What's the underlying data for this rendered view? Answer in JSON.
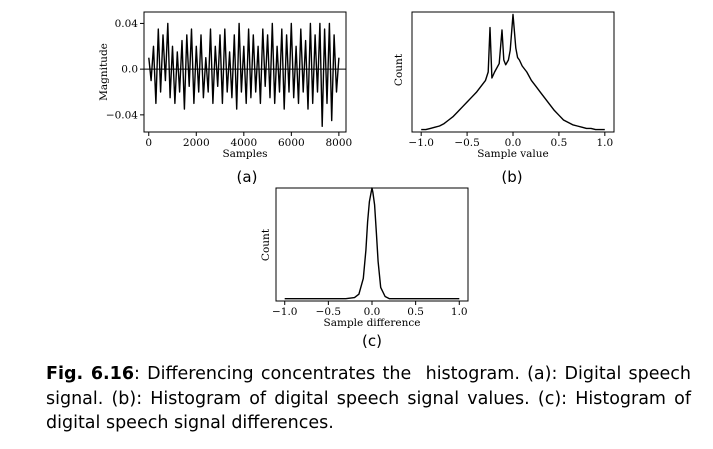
{
  "caption": {
    "label": "Fig. 6.16",
    "text": ": Differencing concentrates the  histogram. (a): Digital speech signal. (b): Histogram of digital speech signal values. (c): Histogram of digital speech signal differences."
  },
  "chart_data": [
    {
      "type": "line",
      "panel_label": "(a)",
      "title": "",
      "xlabel": "Samples",
      "ylabel": "Magnitude",
      "xlim": [
        -200,
        8300
      ],
      "ylim": [
        -0.055,
        0.05
      ],
      "xticks": [
        0,
        2000,
        4000,
        6000,
        8000
      ],
      "xtick_labels": [
        "0",
        "2000",
        "4000",
        "6000",
        "8000"
      ],
      "yticks": [
        -0.04,
        0.0,
        0.04
      ],
      "ytick_labels": [
        "−0.04",
        "0.0",
        "0.04"
      ],
      "zero_line": true,
      "grid": false,
      "series": [
        {
          "x": [
            0,
            100,
            200,
            300,
            400,
            500,
            600,
            700,
            800,
            900,
            1000,
            1100,
            1200,
            1300,
            1400,
            1500,
            1600,
            1700,
            1800,
            1900,
            2000,
            2100,
            2200,
            2300,
            2400,
            2500,
            2600,
            2700,
            2800,
            2900,
            3000,
            3100,
            3200,
            3300,
            3400,
            3500,
            3600,
            3700,
            3800,
            3900,
            4000,
            4100,
            4200,
            4300,
            4400,
            4500,
            4600,
            4700,
            4800,
            4900,
            5000,
            5100,
            5200,
            5300,
            5400,
            5500,
            5600,
            5700,
            5800,
            5900,
            6000,
            6100,
            6200,
            6300,
            6400,
            6500,
            6600,
            6700,
            6800,
            6900,
            7000,
            7100,
            7200,
            7300,
            7400,
            7500,
            7600,
            7700,
            7800,
            7900,
            8000
          ],
          "y": [
            0.01,
            -0.01,
            0.02,
            -0.03,
            0.035,
            -0.02,
            0.03,
            -0.01,
            0.04,
            -0.025,
            0.02,
            -0.03,
            0.015,
            -0.02,
            0.025,
            -0.035,
            0.03,
            -0.015,
            0.035,
            -0.03,
            0.02,
            -0.02,
            0.03,
            -0.025,
            0.01,
            -0.02,
            0.035,
            -0.03,
            0.02,
            -0.015,
            0.03,
            -0.03,
            0.035,
            -0.02,
            0.015,
            -0.025,
            0.03,
            -0.035,
            0.04,
            -0.02,
            0.02,
            -0.03,
            0.035,
            -0.025,
            0.03,
            -0.02,
            0.02,
            -0.03,
            0.035,
            -0.015,
            0.03,
            -0.025,
            0.04,
            -0.03,
            0.02,
            -0.02,
            0.035,
            -0.035,
            0.03,
            -0.02,
            0.04,
            -0.025,
            0.02,
            -0.03,
            0.035,
            -0.02,
            0.025,
            -0.035,
            0.04,
            -0.03,
            0.03,
            -0.02,
            0.04,
            -0.05,
            0.035,
            -0.03,
            0.04,
            -0.045,
            0.03,
            -0.02,
            0.01
          ]
        }
      ]
    },
    {
      "type": "line",
      "panel_label": "(b)",
      "title": "",
      "xlabel": "Sample value",
      "ylabel": "Count",
      "xlim": [
        -1.1,
        1.1
      ],
      "ylim": [
        0,
        1.0
      ],
      "xticks": [
        -1.0,
        -0.5,
        0.0,
        0.5,
        1.0
      ],
      "xtick_labels": [
        "−1.0",
        "−0.5",
        "0.0",
        "0.5",
        "1.0"
      ],
      "yticks": [],
      "grid": false,
      "series": [
        {
          "x": [
            -1.0,
            -0.95,
            -0.9,
            -0.85,
            -0.8,
            -0.75,
            -0.7,
            -0.65,
            -0.6,
            -0.55,
            -0.5,
            -0.45,
            -0.4,
            -0.35,
            -0.3,
            -0.27,
            -0.25,
            -0.23,
            -0.2,
            -0.15,
            -0.12,
            -0.1,
            -0.08,
            -0.05,
            -0.03,
            0.0,
            0.03,
            0.05,
            0.07,
            0.1,
            0.15,
            0.2,
            0.25,
            0.3,
            0.35,
            0.4,
            0.45,
            0.5,
            0.55,
            0.6,
            0.65,
            0.7,
            0.75,
            0.8,
            0.85,
            0.9,
            0.95,
            1.0
          ],
          "y": [
            0.02,
            0.02,
            0.03,
            0.04,
            0.05,
            0.07,
            0.1,
            0.13,
            0.17,
            0.21,
            0.25,
            0.29,
            0.33,
            0.38,
            0.43,
            0.5,
            0.87,
            0.45,
            0.5,
            0.57,
            0.85,
            0.6,
            0.56,
            0.6,
            0.68,
            0.98,
            0.7,
            0.62,
            0.6,
            0.55,
            0.5,
            0.43,
            0.38,
            0.33,
            0.28,
            0.23,
            0.18,
            0.14,
            0.1,
            0.08,
            0.06,
            0.05,
            0.04,
            0.03,
            0.03,
            0.02,
            0.02,
            0.02
          ]
        }
      ]
    },
    {
      "type": "line",
      "panel_label": "(c)",
      "title": "",
      "xlabel": "Sample difference",
      "ylabel": "Count",
      "xlim": [
        -1.1,
        1.1
      ],
      "ylim": [
        0,
        1.0
      ],
      "xticks": [
        -1.0,
        -0.5,
        0.0,
        0.5,
        1.0
      ],
      "xtick_labels": [
        "−1.0",
        "−0.5",
        "0.0",
        "0.5",
        "1.0"
      ],
      "yticks": [],
      "grid": false,
      "series": [
        {
          "x": [
            -1.0,
            -0.5,
            -0.3,
            -0.2,
            -0.15,
            -0.1,
            -0.07,
            -0.05,
            -0.03,
            -0.01,
            0.0,
            0.01,
            0.03,
            0.05,
            0.07,
            0.1,
            0.15,
            0.2,
            0.3,
            0.5,
            1.0
          ],
          "y": [
            0.02,
            0.02,
            0.02,
            0.03,
            0.06,
            0.2,
            0.45,
            0.7,
            0.88,
            0.96,
            1.0,
            0.96,
            0.85,
            0.6,
            0.35,
            0.12,
            0.04,
            0.02,
            0.02,
            0.02,
            0.02
          ]
        }
      ]
    }
  ]
}
